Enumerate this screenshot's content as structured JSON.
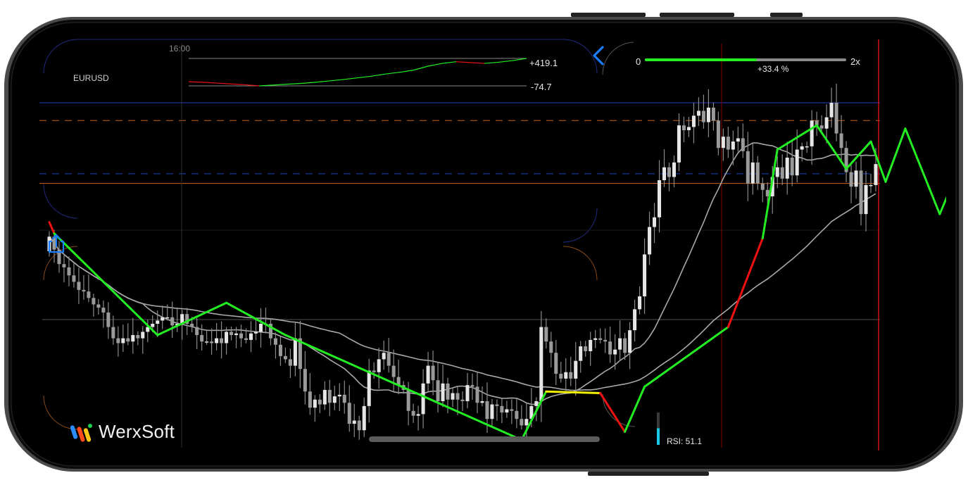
{
  "app": {
    "symbol": "EURUSD",
    "time_marker": "16:00",
    "brand": "WerxSoft"
  },
  "pnl_panel": {
    "max_label": "+419.1",
    "min_label": "-74.7"
  },
  "zoom_panel": {
    "min_label": "0",
    "percent_label": "+33.4 %",
    "max_label": "2x",
    "level": 0.55
  },
  "indicators": {
    "rsi_label": "RSI: 51.1",
    "rsi_value": 51.1
  },
  "icons": {
    "back": "chevron-left-icon",
    "share": "share-icon",
    "logo": "werxsoft-logo"
  },
  "colors": {
    "background": "#000000",
    "bull_candle": "#e6e6e6",
    "bear_candle": "#9a9a9a",
    "zigzag_up": "#22ee22",
    "zigzag_down": "#ee1111",
    "zigzag_flat": "#f0f000",
    "moving_average": "#a8a8a8",
    "accent_blue": "#1a7cff",
    "level_orange": "#c8641e",
    "level_blue": "#2040c0",
    "cursor_red": "#d01010"
  },
  "chart_data": {
    "type": "candlestick",
    "closes": [
      1.1046,
      1.1038,
      1.1029,
      1.1027,
      1.1022,
      1.1018,
      1.1013,
      1.1012,
      1.1008,
      1.1004,
      1.1002,
      1.0999,
      1.099,
      1.0983,
      1.098,
      1.0983,
      1.0981,
      1.0985,
      1.0983,
      1.0987,
      1.099,
      1.0992,
      1.0994,
      1.0996,
      1.0996,
      1.0991,
      1.0992,
      1.0998,
      1.0992,
      1.099,
      1.0985,
      1.0981,
      1.0981,
      1.098,
      1.0983,
      1.098,
      1.0987,
      1.0985,
      1.0986,
      1.0983,
      1.0982,
      1.0986,
      1.0987,
      1.0992,
      1.0992,
      1.0983,
      1.0979,
      1.0972,
      1.097,
      1.0966,
      1.0983,
      1.0964,
      1.095,
      1.094,
      1.0945,
      1.0942,
      1.0951,
      1.0943,
      1.0947,
      1.0948,
      1.0943,
      1.093,
      1.0932,
      1.0926,
      1.0941,
      1.0963,
      1.0962,
      1.097,
      1.0974,
      1.0966,
      1.0959,
      1.0954,
      1.0951,
      1.0938,
      1.0935,
      1.0936,
      1.0955,
      1.0966,
      1.0957,
      1.0944,
      1.0955,
      1.0945,
      1.0949,
      1.0945,
      1.0944,
      1.0954,
      1.0953,
      1.0943,
      1.0944,
      1.0933,
      1.0942,
      1.0941,
      1.0937,
      1.0939,
      1.0938,
      1.0933,
      1.0929,
      1.0933,
      1.0941,
      1.0944,
      1.099,
      1.0981,
      1.0974,
      1.0961,
      1.0958,
      1.0962,
      1.0958,
      1.0969,
      1.0978,
      1.0975,
      1.0982,
      1.0983,
      1.0982,
      1.0981,
      1.0973,
      1.0976,
      1.0983,
      1.0974,
      1.0988,
      1.1001,
      1.1009,
      1.1035,
      1.1052,
      1.1058,
      1.1081,
      1.1089,
      1.1083,
      1.1092,
      1.1115,
      1.1112,
      1.1114,
      1.1121,
      1.1124,
      1.1117,
      1.1126,
      1.1118,
      1.1101,
      1.1108,
      1.11,
      1.1105,
      1.1107,
      1.1099,
      1.1079,
      1.1092,
      1.1079,
      1.1075,
      1.1071,
      1.1083,
      1.1089,
      1.1082,
      1.1095,
      1.1084,
      1.11,
      1.1102,
      1.1102,
      1.1118,
      1.1115,
      1.1113,
      1.112,
      1.1129,
      1.111,
      1.1101,
      1.1086,
      1.1077,
      1.1087,
      1.106,
      1.1078,
      1.1078,
      1.1091
    ],
    "ylim": [
      1.092,
      1.116
    ],
    "levels": [
      1.1129,
      1.1118,
      1.1085,
      1.1079,
      1.105
    ],
    "zigzag": [
      {
        "i": 0,
        "v": 1.1055
      },
      {
        "i": 1,
        "v": 1.1048
      },
      {
        "i": 22,
        "v": 1.0985
      },
      {
        "i": 36,
        "v": 1.1005
      },
      {
        "i": 48,
        "v": 1.0985
      },
      {
        "i": 96,
        "v": 1.092
      },
      {
        "i": 101,
        "v": 1.095
      },
      {
        "i": 112,
        "v": 1.0949
      },
      {
        "i": 117,
        "v": 1.0925
      },
      {
        "i": 121,
        "v": 1.0953
      },
      {
        "i": 138,
        "v": 1.099
      },
      {
        "i": 145,
        "v": 1.1045
      },
      {
        "i": 148,
        "v": 1.11
      },
      {
        "i": 156,
        "v": 1.1115
      },
      {
        "i": 162,
        "v": 1.1088
      },
      {
        "i": 167,
        "v": 1.1105
      },
      {
        "i": 170,
        "v": 1.108
      },
      {
        "i": 174,
        "v": 1.1113
      },
      {
        "i": 181,
        "v": 1.106
      },
      {
        "i": 185,
        "v": 1.1089
      }
    ],
    "pnl_series": [
      0,
      -10,
      -25,
      -40,
      -55,
      -74.7,
      -60,
      -45,
      -30,
      -10,
      15,
      40,
      70,
      100,
      140,
      170,
      210,
      280,
      330,
      360,
      345,
      330,
      350,
      380,
      419.1
    ],
    "pnl_range": [
      -74.7,
      419.1
    ]
  }
}
